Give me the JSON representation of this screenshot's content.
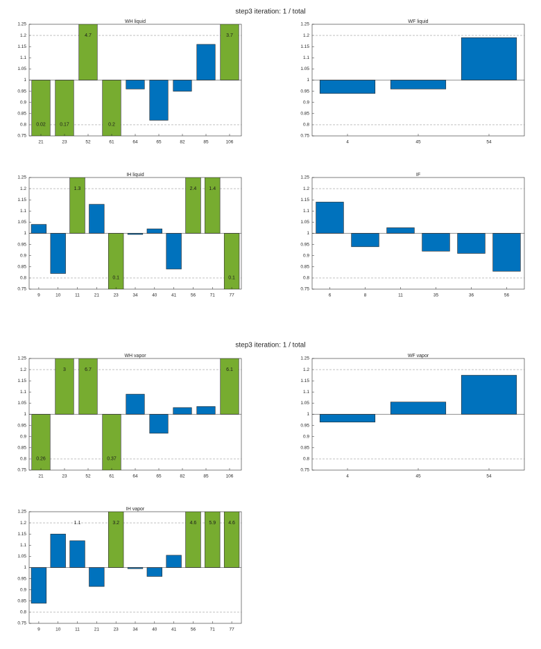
{
  "suptitles": [
    "step3 iteration: 1 / total",
    "step3 iteration: 1 / total"
  ],
  "chart_data": [
    {
      "type": "bar",
      "title": "WH liquid",
      "categories": [
        "21",
        "23",
        "52",
        "61",
        "64",
        "65",
        "82",
        "85",
        "106"
      ],
      "values": [
        0.02,
        0.17,
        4.7,
        0.2,
        0.96,
        0.82,
        0.95,
        1.16,
        3.7
      ],
      "value_labels": [
        "0.02",
        "0.17",
        "4.7",
        "0.2",
        null,
        null,
        null,
        null,
        "3.7"
      ],
      "baseline": 1,
      "reference_lines": [
        0.8,
        1.2
      ],
      "color": "#0072bd",
      "clipped_color": "#77ac30",
      "ylim": [
        0.75,
        1.25
      ],
      "yticks": [
        0.75,
        0.8,
        0.85,
        0.9,
        0.95,
        1,
        1.05,
        1.1,
        1.15,
        1.2,
        1.25
      ]
    },
    {
      "type": "bar",
      "title": "WF liquid",
      "categories": [
        "4",
        "45",
        "54"
      ],
      "values": [
        0.94,
        0.96,
        1.19
      ],
      "value_labels": [
        null,
        null,
        null
      ],
      "baseline": 1,
      "reference_lines": [
        0.8,
        1.2
      ],
      "color": "#0072bd",
      "clipped_color": "#77ac30",
      "ylim": [
        0.75,
        1.25
      ],
      "yticks": [
        0.75,
        0.8,
        0.85,
        0.9,
        0.95,
        1,
        1.05,
        1.1,
        1.15,
        1.2,
        1.25
      ]
    },
    {
      "type": "bar",
      "title": "IH liquid",
      "categories": [
        "9",
        "10",
        "11",
        "21",
        "23",
        "34",
        "40",
        "41",
        "56",
        "71",
        "77"
      ],
      "values": [
        1.04,
        0.82,
        1.3,
        1.13,
        0.1,
        0.995,
        1.02,
        0.84,
        2.4,
        1.4,
        0.1
      ],
      "value_labels": [
        null,
        null,
        "1.3",
        null,
        "0.1",
        null,
        null,
        null,
        "2.4",
        "1.4",
        "0.1"
      ],
      "baseline": 1,
      "reference_lines": [
        0.8,
        1.2
      ],
      "color": "#0072bd",
      "clipped_color": "#77ac30",
      "ylim": [
        0.75,
        1.25
      ],
      "yticks": [
        0.75,
        0.8,
        0.85,
        0.9,
        0.95,
        1,
        1.05,
        1.1,
        1.15,
        1.2,
        1.25
      ]
    },
    {
      "type": "bar",
      "title": "IF",
      "categories": [
        "6",
        "8",
        "11",
        "35",
        "36",
        "56"
      ],
      "values": [
        1.14,
        0.94,
        1.025,
        0.92,
        0.91,
        0.83
      ],
      "value_labels": [
        null,
        null,
        null,
        null,
        null,
        null
      ],
      "baseline": 1,
      "reference_lines": [
        0.8,
        1.2
      ],
      "color": "#0072bd",
      "clipped_color": "#77ac30",
      "ylim": [
        0.75,
        1.25
      ],
      "yticks": [
        0.75,
        0.8,
        0.85,
        0.9,
        0.95,
        1,
        1.05,
        1.1,
        1.15,
        1.2,
        1.25
      ]
    },
    {
      "type": "bar",
      "title": "WH vapor",
      "categories": [
        "21",
        "23",
        "52",
        "61",
        "64",
        "65",
        "82",
        "85",
        "106"
      ],
      "values": [
        0.26,
        3,
        6.7,
        0.37,
        1.09,
        0.915,
        1.03,
        1.035,
        6.1
      ],
      "value_labels": [
        "0.26",
        "3",
        "6.7",
        "0.37",
        null,
        null,
        null,
        null,
        "6.1"
      ],
      "baseline": 1,
      "reference_lines": [
        0.8,
        1.2
      ],
      "color": "#0072bd",
      "clipped_color": "#77ac30",
      "ylim": [
        0.75,
        1.25
      ],
      "yticks": [
        0.75,
        0.8,
        0.85,
        0.9,
        0.95,
        1,
        1.05,
        1.1,
        1.15,
        1.2,
        1.25
      ]
    },
    {
      "type": "bar",
      "title": "WF vapor",
      "categories": [
        "4",
        "45",
        "54"
      ],
      "values": [
        0.965,
        1.055,
        1.175
      ],
      "value_labels": [
        null,
        null,
        null
      ],
      "baseline": 1,
      "reference_lines": [
        0.8,
        1.2
      ],
      "color": "#0072bd",
      "clipped_color": "#77ac30",
      "ylim": [
        0.75,
        1.25
      ],
      "yticks": [
        0.75,
        0.8,
        0.85,
        0.9,
        0.95,
        1,
        1.05,
        1.1,
        1.15,
        1.2,
        1.25
      ]
    },
    {
      "type": "bar",
      "title": "IH vapor",
      "categories": [
        "9",
        "10",
        "11",
        "21",
        "23",
        "34",
        "40",
        "41",
        "56",
        "71",
        "77"
      ],
      "values": [
        0.84,
        1.15,
        1.12,
        0.915,
        3.2,
        0.995,
        0.96,
        1.055,
        4.6,
        5.9,
        4.6
      ],
      "value_labels": [
        null,
        null,
        "1.1",
        null,
        "3.2",
        null,
        null,
        null,
        "4.6",
        "5.9",
        "4.6"
      ],
      "baseline": 1,
      "reference_lines": [
        0.8,
        1.2
      ],
      "color": "#0072bd",
      "clipped_color": "#77ac30",
      "ylim": [
        0.75,
        1.25
      ],
      "yticks": [
        0.75,
        0.8,
        0.85,
        0.9,
        0.95,
        1,
        1.05,
        1.1,
        1.15,
        1.2,
        1.25
      ]
    }
  ]
}
